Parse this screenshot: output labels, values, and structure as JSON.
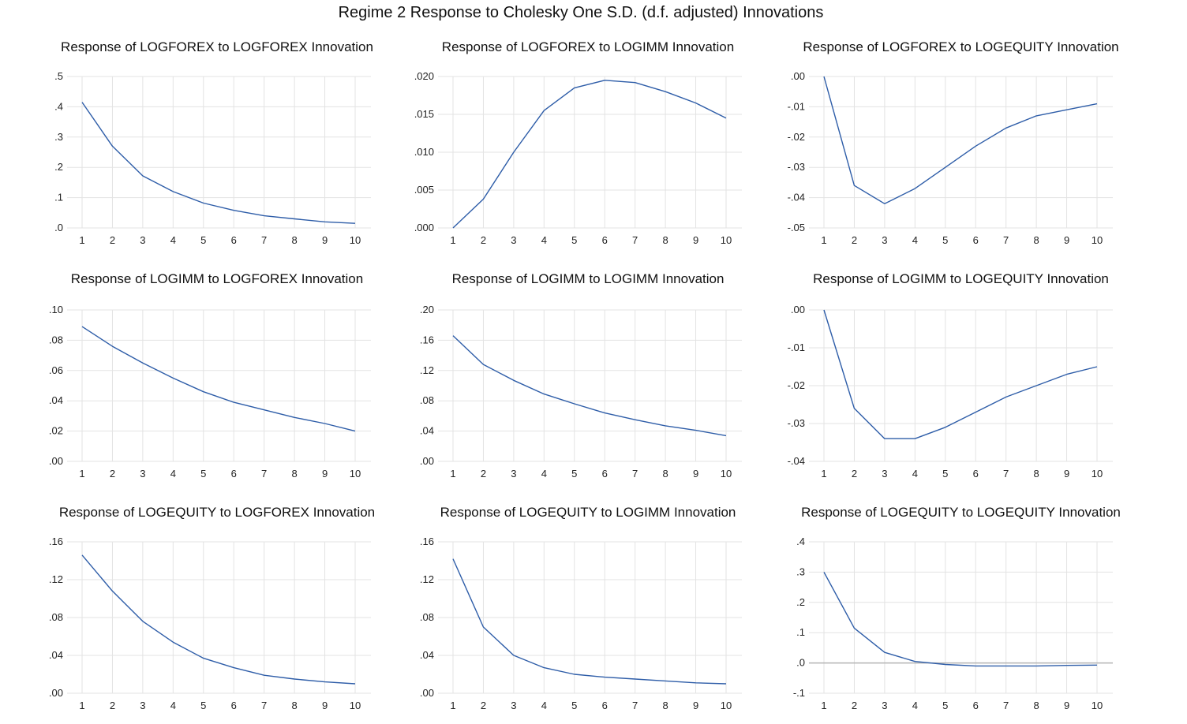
{
  "title": "Regime 2 Response to Cholesky One S.D. (d.f. adjusted) Innovations",
  "colors": {
    "line": "#2E5DA8",
    "grid": "#E3E3E3",
    "zero": "#B5B5B5"
  },
  "chart_data": [
    {
      "type": "line",
      "title": "Response of LOGFOREX to LOGFOREX Innovation",
      "categories": [
        "1",
        "2",
        "3",
        "4",
        "5",
        "6",
        "7",
        "8",
        "9",
        "10"
      ],
      "values": [
        0.415,
        0.27,
        0.172,
        0.12,
        0.082,
        0.058,
        0.04,
        0.03,
        0.02,
        0.015
      ],
      "ylim": [
        0,
        0.5
      ],
      "yticks": [
        0,
        0.1,
        0.2,
        0.3,
        0.4,
        0.5
      ],
      "yticklabels": [
        ".0",
        ".1",
        ".2",
        ".3",
        ".4",
        ".5"
      ],
      "grid": true
    },
    {
      "type": "line",
      "title": "Response of LOGFOREX to LOGIMM Innovation",
      "categories": [
        "1",
        "2",
        "3",
        "4",
        "5",
        "6",
        "7",
        "8",
        "9",
        "10"
      ],
      "values": [
        0.0,
        0.0038,
        0.01,
        0.0155,
        0.0185,
        0.0195,
        0.0192,
        0.018,
        0.0165,
        0.0145
      ],
      "ylim": [
        0,
        0.02
      ],
      "yticks": [
        0,
        0.005,
        0.01,
        0.015,
        0.02
      ],
      "yticklabels": [
        ".000",
        ".005",
        ".010",
        ".015",
        ".020"
      ],
      "grid": true
    },
    {
      "type": "line",
      "title": "Response of LOGFOREX to LOGEQUITY Innovation",
      "categories": [
        "1",
        "2",
        "3",
        "4",
        "5",
        "6",
        "7",
        "8",
        "9",
        "10"
      ],
      "values": [
        0.0,
        -0.036,
        -0.042,
        -0.037,
        -0.03,
        -0.023,
        -0.017,
        -0.013,
        -0.011,
        -0.009
      ],
      "ylim": [
        -0.05,
        0
      ],
      "yticks": [
        -0.05,
        -0.04,
        -0.03,
        -0.02,
        -0.01,
        0
      ],
      "yticklabels": [
        "-.05",
        "-.04",
        "-.03",
        "-.02",
        "-.01",
        ".00"
      ],
      "grid": true
    },
    {
      "type": "line",
      "title": "Response of LOGIMM to LOGFOREX Innovation",
      "categories": [
        "1",
        "2",
        "3",
        "4",
        "5",
        "6",
        "7",
        "8",
        "9",
        "10"
      ],
      "values": [
        0.089,
        0.076,
        0.065,
        0.055,
        0.046,
        0.039,
        0.034,
        0.029,
        0.025,
        0.02
      ],
      "ylim": [
        0,
        0.1
      ],
      "yticks": [
        0,
        0.02,
        0.04,
        0.06,
        0.08,
        0.1
      ],
      "yticklabels": [
        ".00",
        ".02",
        ".04",
        ".06",
        ".08",
        ".10"
      ],
      "grid": true
    },
    {
      "type": "line",
      "title": "Response of LOGIMM to LOGIMM Innovation",
      "categories": [
        "1",
        "2",
        "3",
        "4",
        "5",
        "6",
        "7",
        "8",
        "9",
        "10"
      ],
      "values": [
        0.166,
        0.128,
        0.107,
        0.089,
        0.076,
        0.064,
        0.055,
        0.047,
        0.041,
        0.034
      ],
      "ylim": [
        0,
        0.2
      ],
      "yticks": [
        0,
        0.04,
        0.08,
        0.12,
        0.16,
        0.2
      ],
      "yticklabels": [
        ".00",
        ".04",
        ".08",
        ".12",
        ".16",
        ".20"
      ],
      "grid": true
    },
    {
      "type": "line",
      "title": "Response of LOGIMM to LOGEQUITY Innovation",
      "categories": [
        "1",
        "2",
        "3",
        "4",
        "5",
        "6",
        "7",
        "8",
        "9",
        "10"
      ],
      "values": [
        0.0,
        -0.026,
        -0.034,
        -0.034,
        -0.031,
        -0.027,
        -0.023,
        -0.02,
        -0.017,
        -0.015
      ],
      "ylim": [
        -0.04,
        0
      ],
      "yticks": [
        -0.04,
        -0.03,
        -0.02,
        -0.01,
        0
      ],
      "yticklabels": [
        "-.04",
        "-.03",
        "-.02",
        "-.01",
        ".00"
      ],
      "grid": true
    },
    {
      "type": "line",
      "title": "Response of LOGEQUITY to LOGFOREX Innovation",
      "categories": [
        "1",
        "2",
        "3",
        "4",
        "5",
        "6",
        "7",
        "8",
        "9",
        "10"
      ],
      "values": [
        0.146,
        0.108,
        0.076,
        0.054,
        0.037,
        0.027,
        0.019,
        0.015,
        0.012,
        0.01
      ],
      "ylim": [
        0,
        0.16
      ],
      "yticks": [
        0,
        0.04,
        0.08,
        0.12,
        0.16
      ],
      "yticklabels": [
        ".00",
        ".04",
        ".08",
        ".12",
        ".16"
      ],
      "grid": true
    },
    {
      "type": "line",
      "title": "Response of LOGEQUITY to LOGIMM Innovation",
      "categories": [
        "1",
        "2",
        "3",
        "4",
        "5",
        "6",
        "7",
        "8",
        "9",
        "10"
      ],
      "values": [
        0.142,
        0.07,
        0.04,
        0.027,
        0.02,
        0.017,
        0.015,
        0.013,
        0.011,
        0.01
      ],
      "ylim": [
        0,
        0.16
      ],
      "yticks": [
        0,
        0.04,
        0.08,
        0.12,
        0.16
      ],
      "yticklabels": [
        ".00",
        ".04",
        ".08",
        ".12",
        ".16"
      ],
      "grid": true
    },
    {
      "type": "line",
      "title": "Response of LOGEQUITY to LOGEQUITY Innovation",
      "categories": [
        "1",
        "2",
        "3",
        "4",
        "5",
        "6",
        "7",
        "8",
        "9",
        "10"
      ],
      "values": [
        0.3,
        0.115,
        0.035,
        0.005,
        -0.005,
        -0.01,
        -0.01,
        -0.01,
        -0.008,
        -0.007
      ],
      "ylim": [
        -0.1,
        0.4
      ],
      "yticks": [
        -0.1,
        0,
        0.1,
        0.2,
        0.3,
        0.4
      ],
      "yticklabels": [
        "-.1",
        ".0",
        ".1",
        ".2",
        ".3",
        ".4"
      ],
      "grid": true,
      "zero_line": true
    }
  ]
}
